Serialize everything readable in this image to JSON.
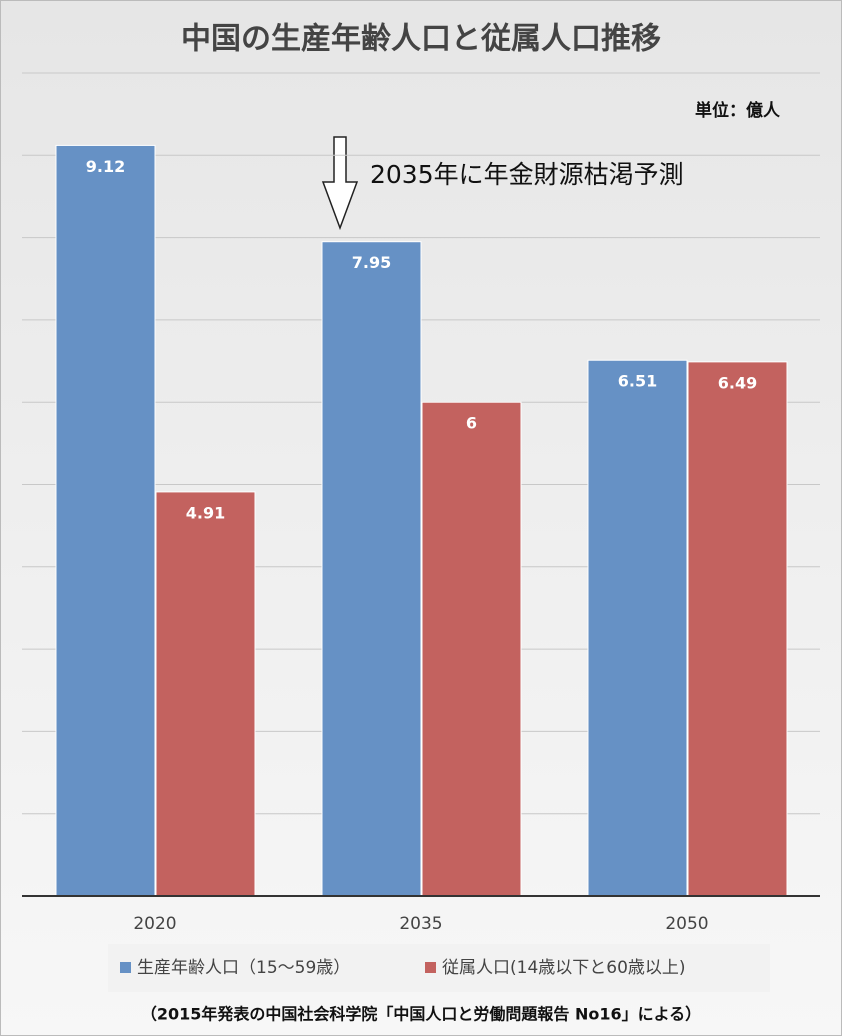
{
  "chart_data": {
    "type": "bar",
    "title": "中国の生産年齢人口と従属人口推移",
    "unit_label": "単位：億人",
    "annotation": "2035年に年金財源枯渇予測",
    "source": "（2015年発表の中国社会科学院「中国人口と労働問題報告 No16」による）",
    "categories": [
      "2020",
      "2035",
      "2050"
    ],
    "series": [
      {
        "name": "生産年齢人口（15～59歳）",
        "color": "#6691c5",
        "values": [
          9.12,
          7.95,
          6.51
        ]
      },
      {
        "name": "従属人口(14歳以下と60歳以上)",
        "color": "#c3625f",
        "values": [
          4.91,
          6,
          6.49
        ]
      }
    ],
    "ylim": [
      0,
      10
    ],
    "yticks": [
      0,
      1,
      2,
      3,
      4,
      5,
      6,
      7,
      8,
      9,
      10
    ],
    "grid": true,
    "legend": "bottom"
  }
}
